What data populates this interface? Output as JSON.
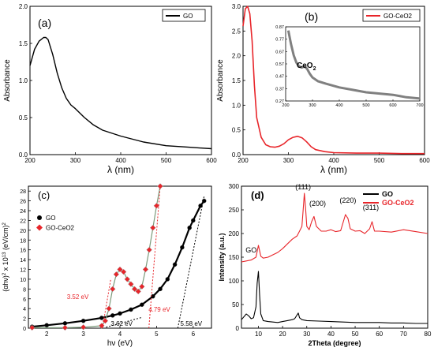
{
  "chart_data": [
    {
      "panel": "(a)",
      "type": "line",
      "xlabel": "λ (nm)",
      "ylabel": "Absorbance",
      "xlim": [
        200,
        600
      ],
      "xticks": [
        200,
        300,
        400,
        500,
        600
      ],
      "ylim": [
        0,
        2.0
      ],
      "yticks": [
        0.0,
        0.5,
        1.0,
        1.5,
        2.0
      ],
      "legend_position": "top-right",
      "color": "#000000",
      "series": [
        {
          "name": "GO",
          "x": [
            200,
            210,
            220,
            230,
            235,
            240,
            250,
            260,
            270,
            280,
            290,
            300,
            320,
            340,
            360,
            400,
            450,
            500,
            550,
            600
          ],
          "y": [
            1.2,
            1.42,
            1.53,
            1.58,
            1.58,
            1.55,
            1.35,
            1.1,
            0.9,
            0.76,
            0.67,
            0.62,
            0.5,
            0.4,
            0.33,
            0.25,
            0.17,
            0.12,
            0.1,
            0.08
          ]
        }
      ]
    },
    {
      "panel": "(b)",
      "type": "line",
      "xlabel": "λ (nm)",
      "ylabel": "Absorbance",
      "xlim": [
        200,
        600
      ],
      "xticks": [
        200,
        300,
        400,
        500,
        600
      ],
      "ylim": [
        0,
        3.0
      ],
      "yticks": [
        0.0,
        0.5,
        1.0,
        1.5,
        2.0,
        2.5,
        3.0
      ],
      "legend_position": "top-right",
      "color": "#e8252a",
      "series": [
        {
          "name": "GO-CeO2",
          "x": [
            200,
            205,
            210,
            215,
            220,
            225,
            230,
            240,
            250,
            260,
            270,
            280,
            290,
            300,
            310,
            320,
            330,
            340,
            350,
            360,
            380,
            400,
            450,
            500,
            550,
            600
          ],
          "y": [
            2.6,
            2.95,
            3.0,
            2.85,
            2.3,
            1.4,
            0.75,
            0.35,
            0.2,
            0.16,
            0.15,
            0.17,
            0.22,
            0.3,
            0.35,
            0.37,
            0.34,
            0.26,
            0.16,
            0.1,
            0.06,
            0.04,
            0.03,
            0.03,
            0.02,
            0.02
          ]
        }
      ],
      "inset": {
        "label": "CeO",
        "label_sub": "2",
        "xlim": [
          200,
          700
        ],
        "xticks": [
          200,
          300,
          400,
          500,
          600,
          700
        ],
        "ylim": [
          0.27,
          0.87
        ],
        "yticks": [
          0.27,
          0.37,
          0.47,
          0.57,
          0.67,
          0.77,
          0.87
        ],
        "color": "#808080",
        "x": [
          210,
          220,
          230,
          240,
          250,
          260,
          270,
          280,
          290,
          300,
          320,
          350,
          400,
          450,
          500,
          550,
          600,
          650,
          700
        ],
        "y": [
          0.84,
          0.73,
          0.64,
          0.58,
          0.55,
          0.54,
          0.55,
          0.53,
          0.49,
          0.46,
          0.43,
          0.41,
          0.38,
          0.36,
          0.34,
          0.33,
          0.32,
          0.3,
          0.29
        ]
      }
    },
    {
      "panel": "(c)",
      "type": "scatter",
      "xlabel": "hν (eV)",
      "ylabel_parts": [
        "(αhν)",
        "2",
        " x 10",
        "13",
        " (eV/cm)",
        "2"
      ],
      "xlim": [
        1.5,
        6.5
      ],
      "xticks": [
        2,
        3,
        4,
        5,
        6
      ],
      "ylim": [
        0,
        29
      ],
      "yticks": [
        0,
        2,
        4,
        6,
        8,
        10,
        12,
        14,
        16,
        18,
        20,
        22,
        24,
        26,
        28
      ],
      "legend_position": "top-left",
      "series": [
        {
          "name": "GO",
          "color": "#000000",
          "x": [
            1.6,
            2.0,
            2.5,
            3.0,
            3.5,
            3.8,
            4.0,
            4.3,
            4.6,
            4.9,
            5.1,
            5.3,
            5.5,
            5.7,
            5.9,
            6.0,
            6.2,
            6.3
          ],
          "y": [
            0.3,
            0.6,
            1.0,
            1.5,
            2.1,
            2.6,
            3.0,
            3.8,
            4.8,
            6.5,
            8.0,
            10.0,
            13.0,
            16.5,
            20.5,
            22.0,
            25.0,
            26.0
          ]
        },
        {
          "name": "GO-CeO2",
          "color": "#e8252a",
          "x": [
            1.6,
            2.5,
            3.0,
            3.5,
            3.6,
            3.7,
            3.8,
            3.9,
            4.0,
            4.1,
            4.2,
            4.3,
            4.4,
            4.5,
            4.6,
            4.7,
            4.8,
            4.9,
            5.0,
            5.1
          ],
          "y": [
            0.1,
            0.1,
            0.2,
            0.5,
            1.5,
            4.0,
            8.0,
            11.0,
            12.0,
            11.5,
            10.0,
            9.0,
            8.0,
            7.5,
            8.5,
            12.0,
            16.0,
            20.5,
            25.0,
            29.0
          ]
        }
      ],
      "annotations": [
        {
          "text": "3.52 eV",
          "color": "#e8252a"
        },
        {
          "text": "4.79 eV",
          "color": "#e8252a"
        },
        {
          "text": "3.62 eV",
          "color": "#000000"
        },
        {
          "text": "5.58 eV",
          "color": "#000000"
        }
      ]
    },
    {
      "panel": "(d)",
      "type": "line",
      "xlabel": "2Theta (degree)",
      "ylabel": "Intensity (a.u.)",
      "xlim": [
        3,
        80
      ],
      "xticks": [
        10,
        20,
        30,
        40,
        50,
        60,
        70,
        80
      ],
      "ylim": [
        0,
        300
      ],
      "yticks": [
        0,
        50,
        100,
        150,
        200,
        250,
        300
      ],
      "legend_position": "top-right",
      "series": [
        {
          "name": "GO",
          "color": "#000000",
          "x": [
            3,
            5,
            6,
            7,
            8,
            9,
            9.5,
            10,
            10.5,
            11,
            12,
            14,
            16,
            18,
            20,
            22,
            24,
            25,
            26,
            26.5,
            27,
            28,
            30,
            35,
            40,
            45,
            50,
            55,
            60,
            65,
            70,
            75,
            80
          ],
          "y": [
            18,
            30,
            26,
            20,
            22,
            45,
            95,
            120,
            70,
            30,
            16,
            14,
            13,
            12,
            14,
            16,
            18,
            20,
            28,
            32,
            22,
            18,
            16,
            15,
            14,
            13,
            12,
            12,
            12,
            11,
            11,
            10,
            10
          ]
        },
        {
          "name": "GO-CeO2",
          "color": "#e8252a",
          "x": [
            3,
            5,
            7,
            9,
            10,
            11,
            12,
            14,
            16,
            18,
            20,
            22,
            24,
            26,
            27,
            28,
            28.5,
            29,
            29.5,
            30,
            31,
            32,
            33,
            34,
            36,
            38,
            40,
            42,
            44,
            46,
            47,
            48,
            50,
            52,
            54,
            56,
            57,
            58,
            60,
            65,
            70,
            75,
            80
          ],
          "y": [
            140,
            142,
            144,
            150,
            175,
            152,
            148,
            150,
            155,
            160,
            168,
            178,
            188,
            195,
            205,
            215,
            250,
            285,
            255,
            215,
            208,
            225,
            236,
            215,
            205,
            205,
            208,
            204,
            206,
            240,
            232,
            210,
            205,
            206,
            200,
            210,
            225,
            205,
            205,
            203,
            208,
            204,
            200
          ]
        }
      ],
      "annotations": [
        {
          "text": "GO"
        },
        {
          "text": "(111)"
        },
        {
          "text": "(200)"
        },
        {
          "text": "(220)"
        },
        {
          "text": "(311)"
        }
      ]
    }
  ]
}
